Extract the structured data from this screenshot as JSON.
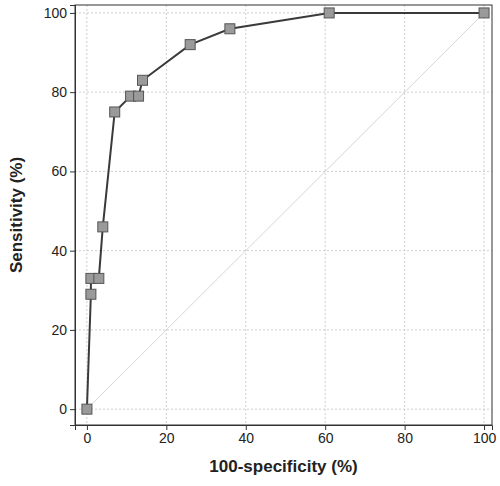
{
  "chart_data": {
    "type": "line",
    "x_label": "100-specificity (%)",
    "y_label": "Sensitivity (%)",
    "xlim": [
      -3,
      102
    ],
    "ylim": [
      -4,
      102
    ],
    "xticks": [
      0,
      20,
      40,
      60,
      80,
      100
    ],
    "yticks": [
      0,
      20,
      40,
      60,
      80,
      100
    ],
    "grid": true,
    "series": [
      {
        "type": "line",
        "color": "#3a3a3a",
        "marker": "square",
        "line_style": "solid",
        "x": [
          0,
          1,
          1,
          3,
          4,
          7,
          11,
          13,
          14,
          26,
          36,
          61,
          100
        ],
        "values": [
          0,
          29,
          33,
          33,
          46,
          75,
          79,
          79,
          83,
          92,
          96,
          100,
          100
        ]
      },
      {
        "type": "line",
        "color": "#d6d6d6",
        "marker": "none",
        "line_style": "solid",
        "x": [
          0,
          100
        ],
        "values": [
          0,
          100
        ]
      }
    ]
  }
}
